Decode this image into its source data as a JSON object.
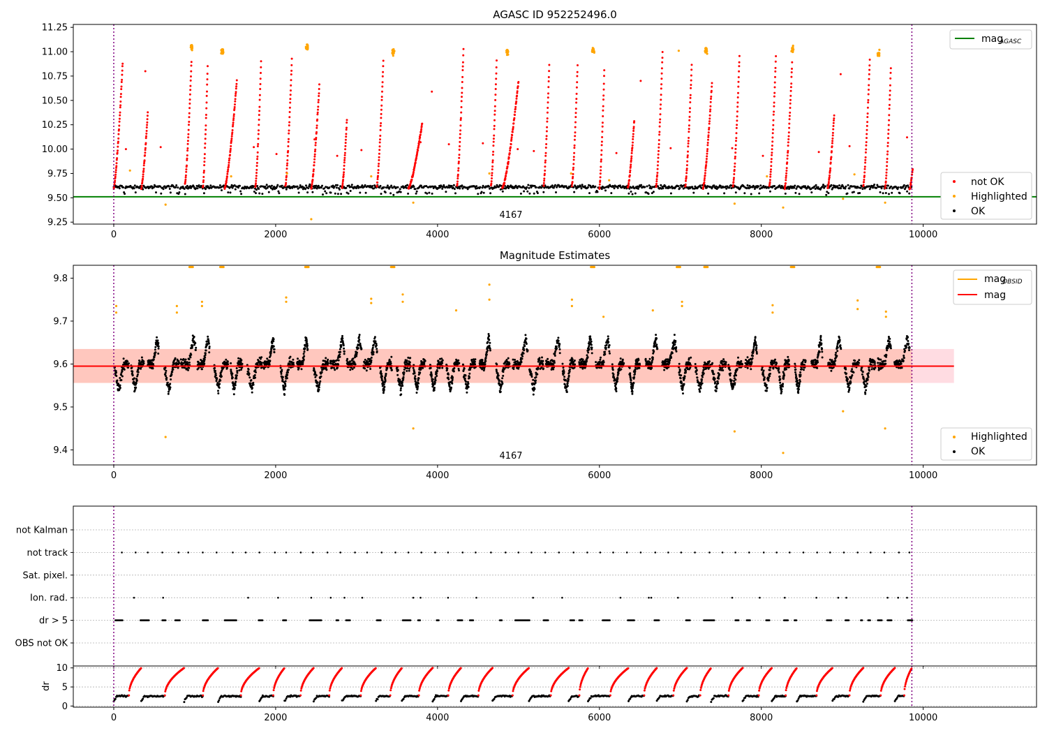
{
  "colors": {
    "ok": "#000000",
    "not_ok": "#ff0000",
    "highlighted": "#ffa500",
    "mag_agasc": "#008000",
    "mag_obsid": "#ffa500",
    "mag": "#ff0000",
    "band": "#ffc0cb",
    "boundary": "#800080",
    "grid": "#b0b0b0"
  },
  "chart_data": [
    {
      "type": "scatter",
      "title": "AGASC ID 952252496.0",
      "annotation": "4167",
      "xlim": [
        -500,
        11400
      ],
      "ylim": [
        9.23,
        11.28
      ],
      "xticks": [
        0,
        2000,
        4000,
        6000,
        8000,
        10000
      ],
      "yticks": [
        9.25,
        9.5,
        9.75,
        10.0,
        10.25,
        10.5,
        10.75,
        11.0,
        11.25
      ],
      "ytick_labels": [
        "9.25",
        "9.50",
        "9.75",
        "10.00",
        "10.25",
        "10.50",
        "10.75",
        "11.00",
        "11.25"
      ],
      "boundaries": [
        0,
        9860
      ],
      "hline": {
        "name": "mag_AGASC",
        "value": 9.51
      },
      "legend_upper": {
        "location": "upper right",
        "entries": [
          {
            "label": "mag",
            "subscript": "AGASC",
            "color": "#008000"
          }
        ]
      },
      "legend_lower": {
        "location": "lower right",
        "entries": [
          {
            "label": "not OK",
            "color": "#ff0000"
          },
          {
            "label": "Highlighted",
            "color": "#ffa500"
          },
          {
            "label": "OK",
            "color": "#000000"
          }
        ]
      },
      "series": [
        {
          "name": "OK",
          "cycles": {
            "starts": [
              0,
              340,
              870,
              1290,
              1800,
              2110,
              2470,
              2820,
              3240,
              3560,
              3940,
              4290,
              4680,
              5130,
              5620,
              5860,
              6360,
              6710,
              7080,
              7380,
              7770,
              8130,
              8440,
              8880,
              9260,
              9650
            ],
            "baseline": 9.61,
            "spread": 0.05
          }
        },
        {
          "name": "not OK",
          "ramps": [
            [
              0,
              110,
              9.6,
              10.88
            ],
            [
              340,
              420,
              9.6,
              10.37
            ],
            [
              880,
              960,
              9.65,
              10.9
            ],
            [
              1100,
              1160,
              9.6,
              10.85
            ],
            [
              1370,
              1520,
              9.6,
              10.7
            ],
            [
              1750,
              1820,
              9.62,
              10.9
            ],
            [
              2120,
              2200,
              9.62,
              10.92
            ],
            [
              2440,
              2540,
              9.6,
              10.66
            ],
            [
              2820,
              2880,
              9.6,
              10.3
            ],
            [
              3250,
              3330,
              9.62,
              10.9
            ],
            [
              3640,
              3810,
              9.6,
              10.27
            ],
            [
              4240,
              4320,
              9.62,
              11.02
            ],
            [
              4660,
              4730,
              9.62,
              10.9
            ],
            [
              4800,
              5000,
              9.6,
              10.7
            ],
            [
              5310,
              5380,
              9.62,
              10.86
            ],
            [
              5660,
              5730,
              9.62,
              10.86
            ],
            [
              6000,
              6060,
              9.6,
              10.8
            ],
            [
              6350,
              6430,
              9.6,
              10.29
            ],
            [
              6700,
              6780,
              9.62,
              11.0
            ],
            [
              7060,
              7140,
              9.62,
              10.86
            ],
            [
              7280,
              7390,
              9.6,
              10.68
            ],
            [
              7650,
              7730,
              9.62,
              10.95
            ],
            [
              8100,
              8180,
              9.62,
              10.95
            ],
            [
              8290,
              8380,
              9.6,
              10.88
            ],
            [
              8820,
              8900,
              9.6,
              10.35
            ],
            [
              9260,
              9340,
              9.62,
              10.92
            ],
            [
              9530,
              9600,
              9.6,
              10.83
            ],
            [
              9830,
              9870,
              9.58,
              9.8
            ]
          ]
        },
        {
          "name": "Highlighted",
          "clusters": [
            [
              960,
              11.05
            ],
            [
              1340,
              11.0
            ],
            [
              2390,
              11.05
            ],
            [
              3450,
              11.0
            ],
            [
              4860,
              11.0
            ],
            [
              5920,
              11.02
            ],
            [
              7320,
              11.0
            ],
            [
              8390,
              11.02
            ],
            [
              9450,
              10.98
            ]
          ],
          "singles": [
            [
              640,
              9.43
            ],
            [
              3700,
              9.45
            ],
            [
              7670,
              9.44
            ],
            [
              8270,
              9.4
            ],
            [
              9010,
              9.49
            ],
            [
              9530,
              9.45
            ],
            [
              2440,
              9.28
            ],
            [
              200,
              9.78
            ],
            [
              1450,
              9.72
            ],
            [
              2140,
              9.75
            ],
            [
              3180,
              9.72
            ],
            [
              4640,
              9.75
            ],
            [
              5650,
              9.75
            ],
            [
              6120,
              9.68
            ],
            [
              6980,
              11.01
            ],
            [
              8070,
              9.72
            ],
            [
              9150,
              9.74
            ]
          ]
        }
      ]
    },
    {
      "type": "scatter",
      "title": "Magnitude Estimates",
      "annotation": "4167",
      "xlim": [
        -500,
        11400
      ],
      "ylim": [
        9.365,
        9.83
      ],
      "xticks": [
        0,
        2000,
        4000,
        6000,
        8000,
        10000
      ],
      "yticks": [
        9.4,
        9.5,
        9.6,
        9.7,
        9.8
      ],
      "ytick_labels": [
        "9.4",
        "9.5",
        "9.6",
        "9.7",
        "9.8"
      ],
      "boundaries": [
        0,
        9860
      ],
      "mag_line": {
        "name": "mag",
        "value": 9.595,
        "x_range": [
          -500,
          10380
        ]
      },
      "mag_obsid_band": {
        "name": "mag_OBSID",
        "low": 9.556,
        "high": 9.635,
        "x_range": [
          -500,
          10380
        ]
      },
      "legend_upper": {
        "location": "upper right",
        "entries": [
          {
            "label": "mag",
            "subscript": "OBSID",
            "color": "#ffa500"
          },
          {
            "label": "mag",
            "color": "#ff0000"
          }
        ]
      },
      "legend_lower": {
        "location": "lower right",
        "entries": [
          {
            "label": "Highlighted",
            "color": "#ffa500"
          },
          {
            "label": "OK",
            "color": "#000000"
          }
        ]
      },
      "series": [
        {
          "name": "OK",
          "segment_count": 48,
          "baseline": 9.6,
          "spread": 0.055
        },
        {
          "name": "Highlighted",
          "singles": [
            [
              30,
              9.735
            ],
            [
              30,
              9.72
            ],
            [
              640,
              9.43
            ],
            [
              780,
              9.735
            ],
            [
              780,
              9.72
            ],
            [
              1090,
              9.745
            ],
            [
              1090,
              9.735
            ],
            [
              2130,
              9.755
            ],
            [
              2130,
              9.745
            ],
            [
              3180,
              9.752
            ],
            [
              3180,
              9.742
            ],
            [
              3570,
              9.762
            ],
            [
              3570,
              9.745
            ],
            [
              3700,
              9.45
            ],
            [
              4230,
              9.725
            ],
            [
              4640,
              9.785
            ],
            [
              4640,
              9.75
            ],
            [
              5660,
              9.75
            ],
            [
              5660,
              9.735
            ],
            [
              6050,
              9.71
            ],
            [
              6660,
              9.725
            ],
            [
              7020,
              9.745
            ],
            [
              7020,
              9.735
            ],
            [
              7670,
              9.443
            ],
            [
              8140,
              9.737
            ],
            [
              8140,
              9.72
            ],
            [
              8270,
              9.393
            ],
            [
              9010,
              9.49
            ],
            [
              9190,
              9.748
            ],
            [
              9190,
              9.728
            ],
            [
              9530,
              9.45
            ],
            [
              9540,
              9.722
            ],
            [
              9540,
              9.71
            ]
          ],
          "clipped_top_clusters": [
            960,
            1340,
            2390,
            3450,
            5920,
            6980,
            7320,
            8390,
            9450
          ]
        }
      ]
    },
    {
      "type": "scatter",
      "title": "",
      "xlim": [
        -500,
        11400
      ],
      "categories": [
        "not Kalman",
        "not track",
        "Sat. pixel.",
        "Ion. rad.",
        "dr > 5",
        "OBS not OK"
      ],
      "boundaries": [
        0,
        9860
      ],
      "series": [
        {
          "name": "not track",
          "x": [
            100,
            270,
            420,
            600,
            800,
            920,
            1100,
            1270,
            1470,
            1630,
            1800,
            1990,
            2130,
            2310,
            2460,
            2640,
            2800,
            2980,
            3130,
            3310,
            3480,
            3640,
            3800,
            3970,
            4130,
            4310,
            4470,
            4660,
            4840,
            5000,
            5160,
            5330,
            5500,
            5680,
            5850,
            6010,
            6170,
            6340,
            6510,
            6690,
            6850,
            7010,
            7180,
            7360,
            7520,
            7680,
            7850,
            8030,
            8190,
            8350,
            8520,
            8690,
            8850,
            9020,
            9190,
            9350,
            9520,
            9700,
            9830
          ]
        },
        {
          "name": "Ion. rad.",
          "x": [
            250,
            610,
            1660,
            2030,
            2440,
            2680,
            2850,
            3070,
            3700,
            3790,
            4130,
            4480,
            5180,
            5540,
            6260,
            6610,
            6640,
            6970,
            7640,
            7980,
            8290,
            8680,
            8950,
            9050,
            9560,
            9690,
            9800
          ]
        },
        {
          "name": "dr > 5",
          "ranges": [
            [
              20,
              110
            ],
            [
              330,
              440
            ],
            [
              600,
              640
            ],
            [
              760,
              820
            ],
            [
              1100,
              1170
            ],
            [
              1370,
              1520
            ],
            [
              1790,
              1840
            ],
            [
              2090,
              2130
            ],
            [
              2420,
              2570
            ],
            [
              2750,
              2780
            ],
            [
              2870,
              2920
            ],
            [
              3250,
              3300
            ],
            [
              3570,
              3670
            ],
            [
              3760,
              3790
            ],
            [
              3990,
              4020
            ],
            [
              4250,
              4310
            ],
            [
              4400,
              4440
            ],
            [
              4770,
              4800
            ],
            [
              4960,
              5140
            ],
            [
              5310,
              5370
            ],
            [
              5640,
              5690
            ],
            [
              5750,
              5790
            ],
            [
              6040,
              6130
            ],
            [
              6350,
              6430
            ],
            [
              6680,
              6740
            ],
            [
              7070,
              7120
            ],
            [
              7290,
              7420
            ],
            [
              7680,
              7720
            ],
            [
              7820,
              7860
            ],
            [
              8060,
              8100
            ],
            [
              8280,
              8330
            ],
            [
              8410,
              8440
            ],
            [
              8810,
              8870
            ],
            [
              9040,
              9080
            ],
            [
              9230,
              9250
            ],
            [
              9320,
              9350
            ],
            [
              9440,
              9490
            ],
            [
              9560,
              9610
            ],
            [
              9810,
              9870
            ]
          ]
        }
      ]
    },
    {
      "type": "scatter",
      "title": "",
      "ylabel": "dr",
      "xlim": [
        -500,
        11400
      ],
      "ylim": [
        -0.3,
        10.5
      ],
      "xticks": [
        0,
        2000,
        4000,
        6000,
        8000,
        10000
      ],
      "yticks": [
        0,
        5,
        10
      ],
      "boundaries": [
        0,
        9860
      ],
      "series": [
        {
          "name": "OK",
          "baseline": 2.6,
          "min": 1.0
        },
        {
          "name": "not OK",
          "max": 10.0
        }
      ]
    }
  ]
}
